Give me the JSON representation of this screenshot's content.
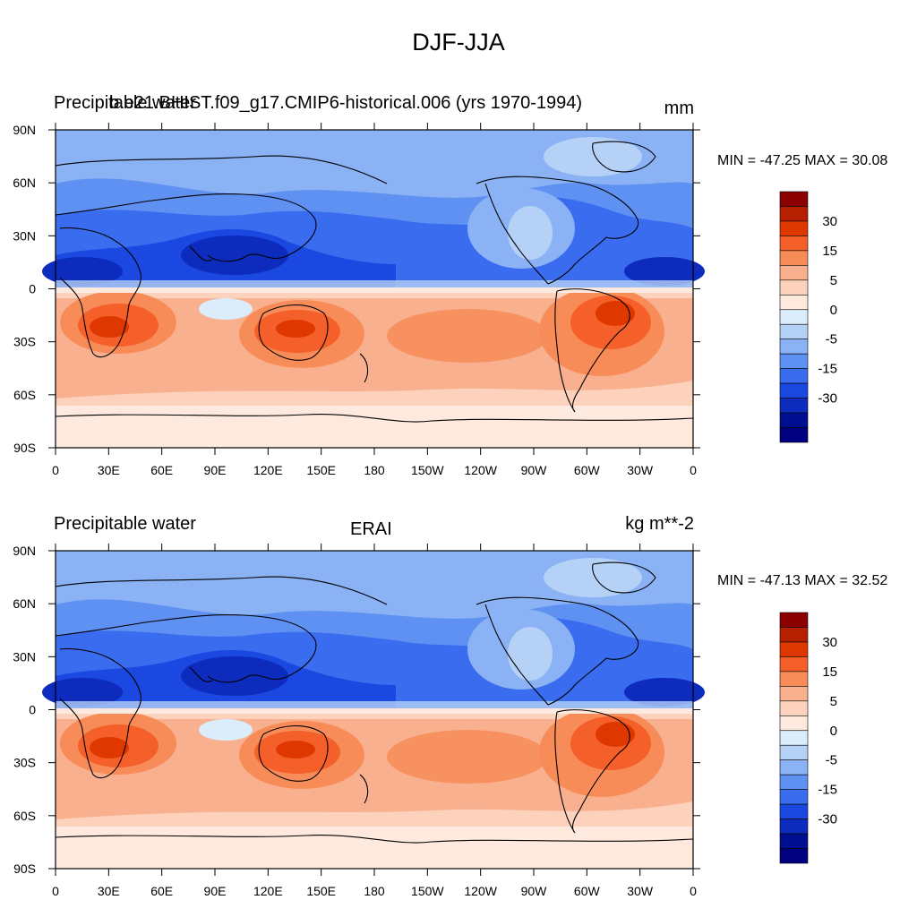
{
  "figure": {
    "title": "DJF-JJA",
    "x_ticks": [
      "0",
      "30E",
      "60E",
      "90E",
      "120E",
      "150E",
      "180",
      "150W",
      "120W",
      "90W",
      "60W",
      "30W",
      "0"
    ],
    "y_ticks": [
      "90N",
      "60N",
      "30N",
      "0",
      "30S",
      "60S",
      "90S"
    ]
  },
  "panels": [
    {
      "left_text_a": "Precipitable water",
      "left_text_b": "b.e21.BHIST.f09_g17.CMIP6-historical.006 (yrs 1970-1994)",
      "center_text": "",
      "units": "mm",
      "min_max": "MIN = -47.25 MAX =  30.08"
    },
    {
      "left_text_a": "Precipitable water",
      "left_text_b": "",
      "center_text": "ERAI",
      "units": "kg m**-2",
      "min_max": "MIN = -47.13 MAX =  32.52"
    }
  ],
  "colorbar": {
    "colors": [
      "#8b0000",
      "#b62000",
      "#de3800",
      "#f55f29",
      "#f88c58",
      "#f9b08f",
      "#fcd2bd",
      "#fde9dd",
      "#dbecfb",
      "#b5d1f6",
      "#8ab2f4",
      "#5f91f2",
      "#3a6cf0",
      "#1a48e0",
      "#0d2bbd",
      "#000f8f",
      "#000080"
    ],
    "labels": [
      "30",
      "15",
      "5",
      "0",
      "-5",
      "-15",
      "-30"
    ]
  }
}
